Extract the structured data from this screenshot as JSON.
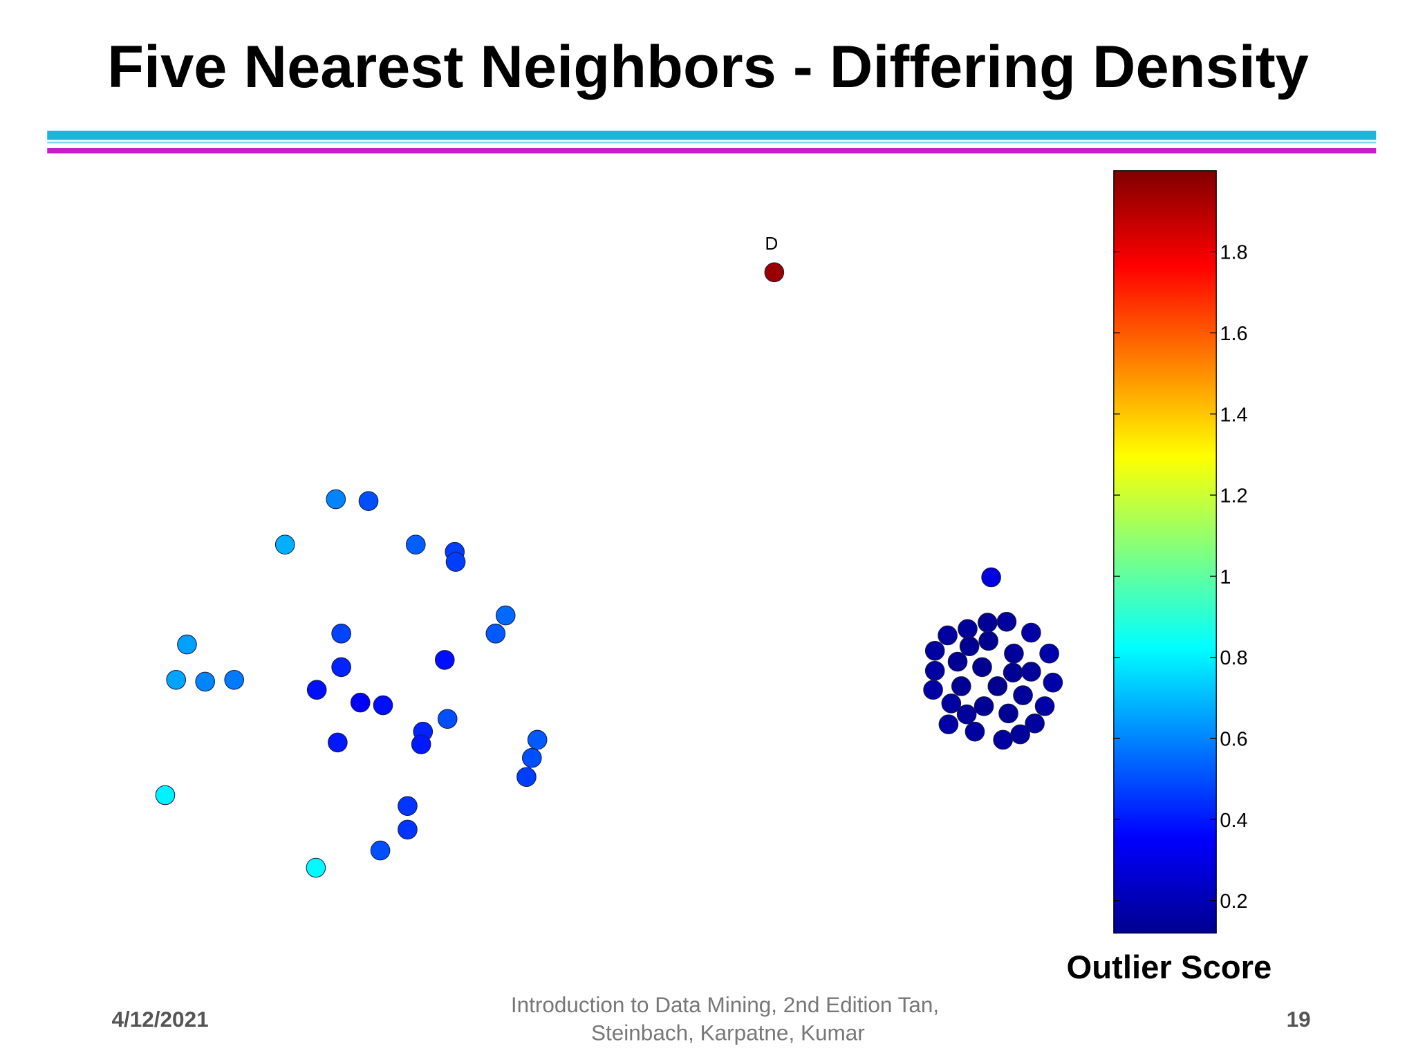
{
  "chart_data": {
    "type": "scatter",
    "title": "Five Nearest Neighbors - Differing Density",
    "annotation": "D",
    "xlim": [
      0,
      120
    ],
    "ylim": [
      0,
      95
    ],
    "x": [
      85.3,
      37.0,
      40.6,
      31.4,
      45.8,
      50.1,
      50.2,
      55.7,
      54.6,
      37.6,
      20.6,
      37.6,
      49.0,
      19.4,
      22.6,
      25.8,
      34.9,
      39.7,
      42.2,
      49.3,
      46.6,
      46.4,
      37.2,
      59.2,
      58.6,
      58.0,
      18.2,
      44.9,
      44.9,
      41.9,
      34.8,
      109.2,
      104.4,
      106.6,
      108.8,
      110.9,
      113.6,
      103.0,
      106.8,
      108.9,
      111.7,
      115.6,
      105.5,
      108.2,
      103.0,
      111.6,
      113.6,
      105.9,
      109.9,
      116.0,
      102.8,
      112.7,
      104.8,
      108.4,
      106.5,
      111.1,
      115.1,
      104.5,
      107.4,
      114.0,
      112.4,
      110.5
    ],
    "y": [
      80.0,
      55.0,
      54.8,
      50.0,
      50.0,
      49.2,
      48.1,
      42.2,
      40.2,
      40.2,
      39.0,
      36.5,
      37.3,
      35.1,
      34.9,
      35.1,
      34.0,
      32.6,
      32.3,
      30.8,
      29.4,
      28.0,
      28.2,
      28.5,
      26.5,
      24.4,
      22.4,
      21.2,
      18.6,
      16.3,
      14.4,
      46.4,
      40.0,
      40.7,
      41.4,
      41.5,
      40.3,
      38.3,
      38.8,
      39.4,
      38.0,
      38.0,
      37.1,
      36.5,
      36.1,
      35.9,
      36.0,
      34.4,
      34.4,
      34.8,
      34.0,
      33.4,
      32.5,
      32.2,
      31.3,
      31.4,
      32.2,
      30.2,
      29.4,
      30.3,
      29.1,
      28.5
    ],
    "values": [
      1.95,
      0.6,
      0.5,
      0.68,
      0.53,
      0.47,
      0.47,
      0.55,
      0.52,
      0.48,
      0.65,
      0.42,
      0.38,
      0.66,
      0.6,
      0.58,
      0.38,
      0.35,
      0.38,
      0.5,
      0.42,
      0.4,
      0.4,
      0.52,
      0.5,
      0.47,
      0.8,
      0.45,
      0.45,
      0.5,
      0.82,
      0.3,
      0.18,
      0.17,
      0.16,
      0.17,
      0.19,
      0.18,
      0.16,
      0.15,
      0.17,
      0.2,
      0.16,
      0.15,
      0.18,
      0.16,
      0.17,
      0.16,
      0.15,
      0.2,
      0.19,
      0.17,
      0.18,
      0.16,
      0.17,
      0.16,
      0.19,
      0.19,
      0.18,
      0.18,
      0.17,
      0.18
    ],
    "colorbar": {
      "label": "Outlier Score",
      "lim": [
        0.12,
        2.0
      ],
      "ticks": [
        0.2,
        0.4,
        0.6,
        0.8,
        1,
        1.2,
        1.4,
        1.6,
        1.8
      ]
    },
    "footer": {
      "date": "4/12/2021",
      "citation": [
        "Introduction to Data Mining, 2nd Edition   Tan,",
        "Steinbach, Karpatne, Kumar"
      ],
      "page": 19
    }
  }
}
